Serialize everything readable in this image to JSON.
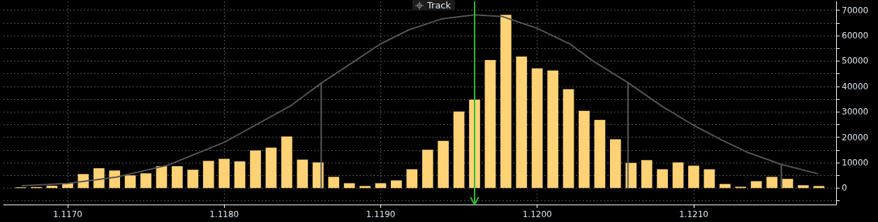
{
  "chart_data": {
    "type": "histogram",
    "bins": [
      1.11665,
      1.11675,
      1.11685,
      1.11695,
      1.11705,
      1.11715,
      1.11725,
      1.11735,
      1.11745,
      1.11755,
      1.11765,
      1.11775,
      1.11785,
      1.11795,
      1.11805,
      1.11815,
      1.11825,
      1.11835,
      1.11845,
      1.11855,
      1.11865,
      1.11875,
      1.11885,
      1.11895,
      1.11905,
      1.11915,
      1.11925,
      1.11935,
      1.11945,
      1.11955,
      1.11965,
      1.11975,
      1.11985,
      1.11995,
      1.12005,
      1.12015,
      1.12025,
      1.12035,
      1.12045,
      1.12055,
      1.12065,
      1.12075,
      1.12085,
      1.12095,
      1.12105,
      1.12115,
      1.12125,
      1.12135,
      1.12145,
      1.12155,
      1.12165,
      1.12175,
      1.12185
    ],
    "values": [
      300,
      400,
      900,
      1900,
      5500,
      7800,
      6900,
      5000,
      5800,
      8600,
      8600,
      7200,
      10700,
      11500,
      10500,
      14800,
      15900,
      20300,
      11200,
      10100,
      4400,
      1900,
      800,
      1900,
      3000,
      7400,
      15100,
      18600,
      30100,
      34800,
      50400,
      68200,
      51800,
      47100,
      46300,
      38900,
      30400,
      26800,
      19200,
      9900,
      11000,
      7400,
      10100,
      8800,
      7400,
      1600,
      500,
      2700,
      4400,
      3600,
      1100,
      800
    ],
    "color": "#ffd275",
    "series": [
      {
        "type": "line",
        "color": "#555555",
        "marker": "none",
        "x": [
          1.11671,
          1.117,
          1.11731,
          1.11764,
          1.118,
          1.11843,
          1.11862,
          1.119,
          1.11918,
          1.11939,
          1.1196,
          1.11978,
          1.12,
          1.12021,
          1.12036,
          1.12058,
          1.1208,
          1.121,
          1.12118,
          1.12135,
          1.12156,
          1.12179
        ],
        "values": [
          900,
          1800,
          4300,
          9000,
          18000,
          32600,
          41300,
          56800,
          62300,
          66600,
          68200,
          67500,
          62900,
          56700,
          49900,
          41500,
          32100,
          24700,
          18900,
          13900,
          9300,
          5700
        ]
      },
      {
        "type": "line",
        "color": "#5a5a5a",
        "marker": "none",
        "x": [
          1.11862,
          1.11862
        ],
        "values": [
          0,
          41300
        ]
      },
      {
        "type": "line",
        "color": "#5a5a5a",
        "marker": "none",
        "x": [
          1.12058,
          1.12058
        ],
        "values": [
          0,
          41500
        ]
      },
      {
        "type": "line",
        "color": "#5a5a5a",
        "marker": "none",
        "x": [
          1.12156,
          1.12156
        ],
        "values": [
          0,
          9300
        ]
      }
    ],
    "ref_lines": [
      {
        "axis": "x",
        "value": 1.1196,
        "color": "#2fbf2f"
      }
    ],
    "annotations": [
      "Track"
    ],
    "xlim": [
      1.11659,
      1.12191
    ],
    "xticks": [
      {
        "value": 1.117,
        "label": "1.1170"
      },
      {
        "value": 1.118,
        "label": "1.1180"
      },
      {
        "value": 1.119,
        "label": "1.1190"
      },
      {
        "value": 1.12,
        "label": "1.1200"
      },
      {
        "value": 1.121,
        "label": "1.1210"
      }
    ],
    "ylim": [
      -6500,
      73500
    ],
    "yticks": [
      {
        "value": -5000,
        "label": null
      },
      0,
      {
        "value": 5000,
        "label": null
      },
      10000,
      {
        "value": 15000,
        "label": null
      },
      20000,
      {
        "value": 25000,
        "label": null
      },
      30000,
      {
        "value": 35000,
        "label": null
      },
      40000,
      {
        "value": 45000,
        "label": null
      },
      50000,
      {
        "value": 55000,
        "label": null
      },
      60000,
      {
        "value": 65000,
        "label": null
      },
      70000
    ],
    "grid": true
  }
}
